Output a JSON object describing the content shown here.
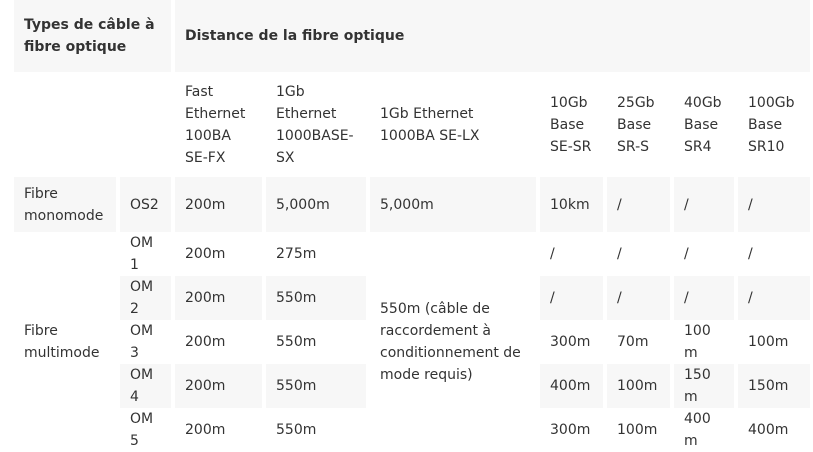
{
  "header": {
    "types_label": "Types de câble à fibre optique",
    "distance_label": "Distance de la fibre optique"
  },
  "columns": [
    "Fast Ethernet 100BA SE-FX",
    "1Gb Ethernet 1000BASE-SX",
    "1Gb Ethernet 1000BA SE-LX",
    "10Gb Base SE-SR",
    "25Gb Base SR-S",
    "40Gb Base SR4",
    "100Gb Base SR10"
  ],
  "single_mode": {
    "label": "Fibre monomode",
    "row": {
      "code": "OS2",
      "cells": [
        "200m",
        "5,000m",
        "5,000m",
        "10km",
        "/",
        "/",
        "/"
      ]
    }
  },
  "multimode": {
    "label": "Fibre multimode",
    "lx_merged": "550m (câble de raccordement à conditionnement de mode requis)",
    "rows": [
      {
        "code": "OM1",
        "fx": "200m",
        "sx": "275m",
        "sr": "/",
        "srs": "/",
        "sr4": "/",
        "sr10": "/"
      },
      {
        "code": "OM2",
        "fx": "200m",
        "sx": "550m",
        "sr": "/",
        "srs": "/",
        "sr4": "/",
        "sr10": "/"
      },
      {
        "code": "OM3",
        "fx": "200m",
        "sx": "550m",
        "sr": "300m",
        "srs": "70m",
        "sr4": "100m",
        "sr10": "100m"
      },
      {
        "code": "OM4",
        "fx": "200m",
        "sx": "550m",
        "sr": "400m",
        "srs": "100m",
        "sr4": "150m",
        "sr10": "150m"
      },
      {
        "code": "OM5",
        "fx": "200m",
        "sx": "550m",
        "sr": "300m",
        "srs": "100m",
        "sr4": "400m",
        "sr10": "400m"
      }
    ]
  }
}
